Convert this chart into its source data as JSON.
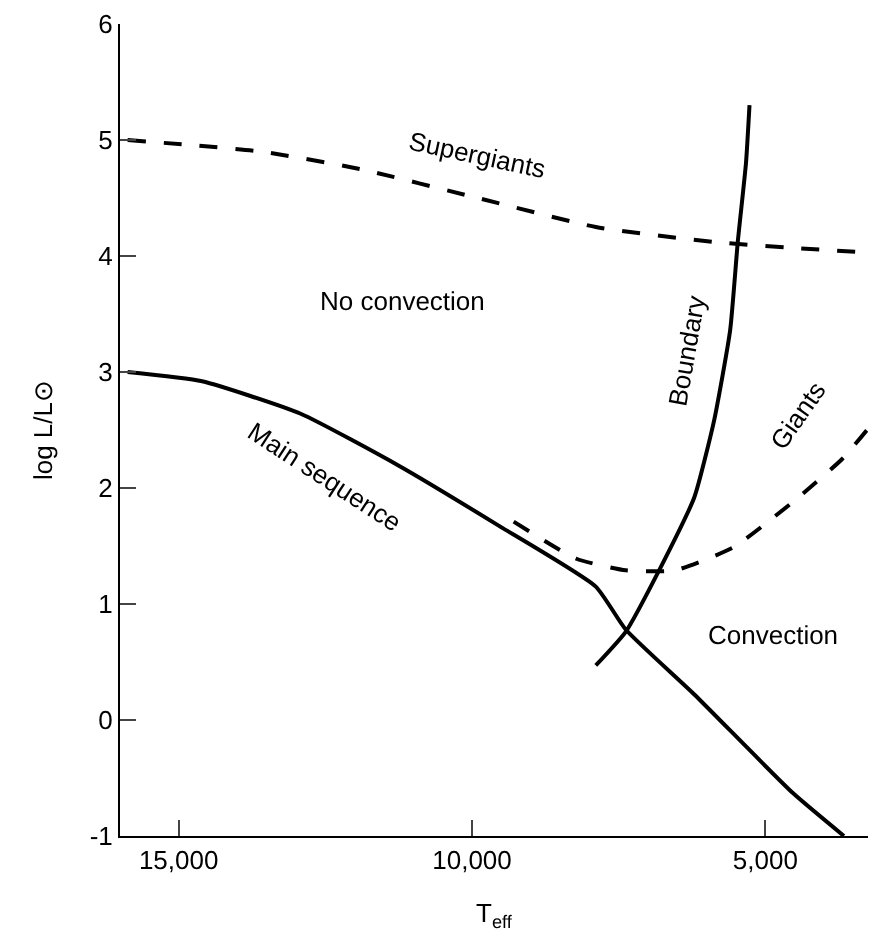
{
  "chart_data": {
    "type": "line",
    "xlabel": "T$_{eff}$",
    "ylabel": "log L/L⊙",
    "xlim": [
      16000,
      3250
    ],
    "xticks": [
      {
        "value": 15000,
        "label": "15,000"
      },
      {
        "value": 10000,
        "label": "10,000"
      },
      {
        "value": 5000,
        "label": "5,000"
      }
    ],
    "ylim": [
      -1,
      6
    ],
    "yticks": [
      -1,
      0,
      1,
      2,
      3,
      4,
      5,
      6
    ],
    "grid": false,
    "legend": false,
    "marker": "none",
    "series": [
      {
        "name": "Supergiants",
        "color": "#000000",
        "line_style": "dashed",
        "x": [
          15870,
          13590,
          11910,
          9900,
          7890,
          5870,
          4530,
          3250
        ],
        "values": [
          5.0,
          4.9,
          4.75,
          4.5,
          4.25,
          4.12,
          4.07,
          4.03
        ]
      },
      {
        "name": "Main sequence",
        "color": "#000000",
        "line_style": "solid",
        "x": [
          15870,
          14600,
          12920,
          11240,
          9560,
          7890,
          7380,
          6210,
          4530,
          3660
        ],
        "values": [
          3.0,
          2.92,
          2.64,
          2.19,
          1.68,
          1.15,
          0.78,
          0.22,
          -0.63,
          -1.0
        ]
      },
      {
        "name": "Boundary",
        "color": "#000000",
        "line_style": "solid",
        "x": [
          7890,
          7380,
          6780,
          6210,
          5870,
          5600,
          5470,
          5330,
          5270
        ],
        "values": [
          0.47,
          0.76,
          1.32,
          1.92,
          2.59,
          3.36,
          4.12,
          4.8,
          5.3
        ]
      },
      {
        "name": "Giants",
        "color": "#000000",
        "line_style": "dashed",
        "x": [
          9290,
          8220,
          7380,
          6540,
          5540,
          4530,
          3690,
          3250
        ],
        "values": [
          1.71,
          1.39,
          1.29,
          1.29,
          1.49,
          1.88,
          2.25,
          2.51
        ]
      }
    ],
    "annotations": [
      "No convection",
      "Convection"
    ]
  }
}
